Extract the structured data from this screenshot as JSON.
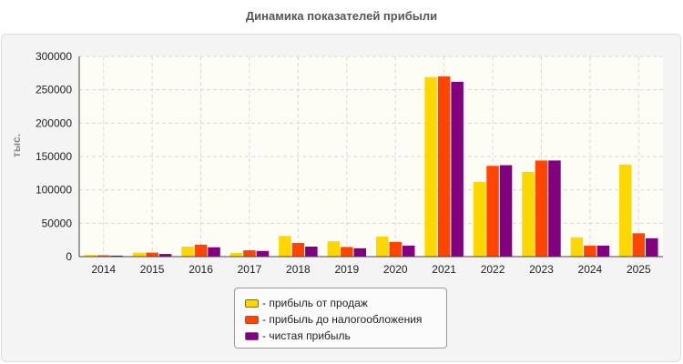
{
  "chart_data": {
    "type": "bar",
    "title": "Динамика показателей прибыли",
    "xlabel": "",
    "ylabel": "тыс.",
    "ylim": [
      0,
      300000
    ],
    "yticks": [
      "0",
      "50000",
      "100000",
      "150000",
      "200000",
      "250000",
      "300000"
    ],
    "grid": true,
    "legend_position": "bottom",
    "categories": [
      "2014",
      "2015",
      "2016",
      "2017",
      "2018",
      "2019",
      "2020",
      "2021",
      "2022",
      "2023",
      "2024",
      "2025"
    ],
    "series": [
      {
        "name": "- прибыль от продаж",
        "color": "#FFD700",
        "values": [
          2500,
          6000,
          15000,
          5500,
          31000,
          23000,
          30000,
          269000,
          112000,
          127000,
          29000,
          138000
        ]
      },
      {
        "name": "- прибыль до налогообложения",
        "color": "#FF4500",
        "values": [
          2000,
          6000,
          18000,
          9500,
          20500,
          14500,
          22000,
          270000,
          136000,
          144000,
          16500,
          35000
        ]
      },
      {
        "name": "- чистая прибыль",
        "color": "#800080",
        "values": [
          1500,
          4000,
          14000,
          8500,
          15000,
          12500,
          16500,
          262000,
          137000,
          144000,
          16500,
          27500
        ]
      }
    ]
  }
}
